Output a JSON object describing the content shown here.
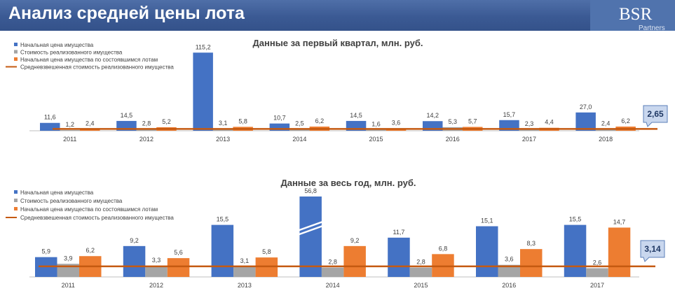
{
  "header": {
    "title": "Анализ средней цены лота",
    "logo_main": "BSR",
    "logo_sub": "Partners"
  },
  "colors": {
    "initial": "#4472c4",
    "sold": "#a5a5a5",
    "completed": "#ed7d31",
    "weighted_line": "#c55a11",
    "callout_fill": "#c9d7ee",
    "callout_border": "#5b7fb8"
  },
  "chart_data": [
    {
      "type": "bar",
      "title": "Данные за первый квартал, млн. руб.",
      "categories": [
        "2011",
        "2012",
        "2013",
        "2014",
        "2015",
        "2016",
        "2017",
        "2018"
      ],
      "series": [
        {
          "name": "Начальная цена имущества",
          "values": [
            11.6,
            14.5,
            115.2,
            10.7,
            14.5,
            14.2,
            15.7,
            27.0
          ],
          "labels": [
            "11,6",
            "14,5",
            "115,2",
            "10,7",
            "14,5",
            "14,2",
            "15,7",
            "27,0"
          ]
        },
        {
          "name": "Стоимость реализованного имущества",
          "values": [
            1.2,
            2.8,
            3.1,
            2.5,
            1.6,
            5.3,
            2.3,
            2.4
          ],
          "labels": [
            "1,2",
            "2,8",
            "3,1",
            "2,5",
            "1,6",
            "5,3",
            "2,3",
            "2,4"
          ]
        },
        {
          "name": "Начальная цена имущества по состоявшимся лотам",
          "values": [
            2.4,
            5.2,
            5.8,
            6.2,
            3.6,
            5.7,
            4.4,
            6.2
          ],
          "labels": [
            "2,4",
            "5,2",
            "5,8",
            "6,2",
            "3,6",
            "5,7",
            "4,4",
            "6,2"
          ]
        }
      ],
      "line": {
        "name": "Средневзвешенная стоимость реализованного имущества",
        "value": 2.65,
        "label": "2,65"
      },
      "legend": "top-left"
    },
    {
      "type": "bar",
      "title": "Данные за весь год, млн. руб.",
      "categories": [
        "2011",
        "2012",
        "2013",
        "2014",
        "2015",
        "2016",
        "2017"
      ],
      "series": [
        {
          "name": "Начальная цена имущества",
          "values": [
            5.9,
            9.2,
            15.5,
            56.8,
            11.7,
            15.1,
            15.5
          ],
          "labels": [
            "5,9",
            "9,2",
            "15,5",
            "56,8",
            "11,7",
            "15,1",
            "15,5"
          ],
          "broken_axis_index": 3
        },
        {
          "name": "Стоимость реализованного имущества",
          "values": [
            3.9,
            3.3,
            3.1,
            2.8,
            2.8,
            3.6,
            2.6
          ],
          "labels": [
            "3,9",
            "3,3",
            "3,1",
            "2,8",
            "2,8",
            "3,6",
            "2,6"
          ]
        },
        {
          "name": "Начальная цена имущества по состоявшимся лотам",
          "values": [
            6.2,
            5.6,
            5.8,
            9.2,
            6.8,
            8.3,
            14.7
          ],
          "labels": [
            "6,2",
            "5,6",
            "5,8",
            "9,2",
            "6,8",
            "8,3",
            "14,7"
          ]
        }
      ],
      "line": {
        "name": "Средневзвешенная стоимость реализованного имущества",
        "value": 3.14,
        "label": "3,14"
      },
      "legend": "top-left"
    }
  ]
}
